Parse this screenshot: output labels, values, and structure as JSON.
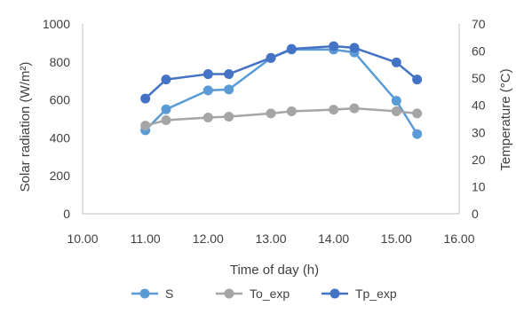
{
  "chart_data": {
    "type": "line",
    "xlabel": "Time of day (h)",
    "ylabel_left": "Solar radiation (W/m²)",
    "ylabel_right": "Temperature (°C)",
    "xlim": [
      10.0,
      16.0
    ],
    "xticks": [
      "10.00",
      "11.00",
      "12.00",
      "13.00",
      "14.00",
      "15.00",
      "16.00"
    ],
    "ylim_left": [
      0,
      1000
    ],
    "yticks_left": [
      "0",
      "200",
      "400",
      "600",
      "800",
      "1000"
    ],
    "ylim_right": [
      0,
      70
    ],
    "yticks_right": [
      "0",
      "10",
      "20",
      "30",
      "40",
      "50",
      "60",
      "70"
    ],
    "grid": false,
    "legend_position": "bottom",
    "series": [
      {
        "name": "S",
        "axis": "left",
        "color": "#5b9bd5",
        "x": [
          11.0,
          11.33,
          12.0,
          12.33,
          13.0,
          13.33,
          14.0,
          14.33,
          15.0,
          15.33
        ],
        "y": [
          440,
          550,
          650,
          655,
          820,
          865,
          865,
          850,
          595,
          420
        ]
      },
      {
        "name": "To_exp",
        "axis": "right",
        "color": "#a5a5a5",
        "x": [
          11.0,
          11.33,
          12.0,
          12.33,
          13.0,
          13.33,
          14.0,
          14.33,
          15.0,
          15.33
        ],
        "y": [
          32.5,
          34.5,
          35.5,
          35.8,
          37.0,
          37.8,
          38.4,
          38.9,
          37.8,
          37.0
        ]
      },
      {
        "name": "Tp_exp",
        "axis": "right",
        "color": "#4472c4",
        "x": [
          11.0,
          11.33,
          12.0,
          12.33,
          13.0,
          13.33,
          14.0,
          14.33,
          15.0,
          15.33
        ],
        "y": [
          42.5,
          49.5,
          51.5,
          51.5,
          57.5,
          60.8,
          61.8,
          61.2,
          55.8,
          49.5
        ]
      }
    ]
  }
}
